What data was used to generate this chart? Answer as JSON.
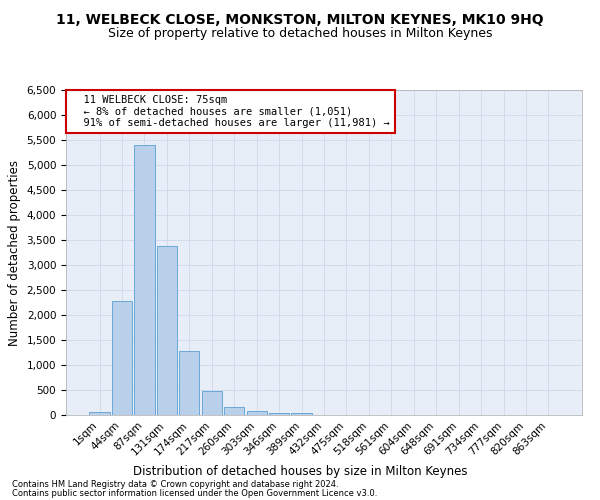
{
  "title": "11, WELBECK CLOSE, MONKSTON, MILTON KEYNES, MK10 9HQ",
  "subtitle": "Size of property relative to detached houses in Milton Keynes",
  "xlabel": "Distribution of detached houses by size in Milton Keynes",
  "ylabel": "Number of detached properties",
  "footer_line1": "Contains HM Land Registry data © Crown copyright and database right 2024.",
  "footer_line2": "Contains public sector information licensed under the Open Government Licence v3.0.",
  "annotation_title": "11 WELBECK CLOSE: 75sqm",
  "annotation_line1": "← 8% of detached houses are smaller (1,051)",
  "annotation_line2": "91% of semi-detached houses are larger (11,981) →",
  "bar_labels": [
    "1sqm",
    "44sqm",
    "87sqm",
    "131sqm",
    "174sqm",
    "217sqm",
    "260sqm",
    "303sqm",
    "346sqm",
    "389sqm",
    "432sqm",
    "475sqm",
    "518sqm",
    "561sqm",
    "604sqm",
    "648sqm",
    "691sqm",
    "734sqm",
    "777sqm",
    "820sqm",
    "863sqm"
  ],
  "bar_values": [
    70,
    2280,
    5400,
    3370,
    1280,
    475,
    155,
    80,
    50,
    45,
    0,
    0,
    0,
    0,
    0,
    0,
    0,
    0,
    0,
    0,
    0
  ],
  "bar_color": "#b8d0ea",
  "bar_edge_color": "#5a9fd4",
  "annotation_box_color": "#ffffff",
  "annotation_box_edge": "#cc0000",
  "ylim": [
    0,
    6500
  ],
  "yticks": [
    0,
    500,
    1000,
    1500,
    2000,
    2500,
    3000,
    3500,
    4000,
    4500,
    5000,
    5500,
    6000,
    6500
  ],
  "grid_color": "#c8d4e8",
  "bg_color": "#e8eef8",
  "title_fontsize": 10,
  "subtitle_fontsize": 9,
  "xlabel_fontsize": 8.5,
  "ylabel_fontsize": 8.5,
  "tick_fontsize": 7.5,
  "annotation_fontsize": 7.5,
  "footer_fontsize": 6
}
